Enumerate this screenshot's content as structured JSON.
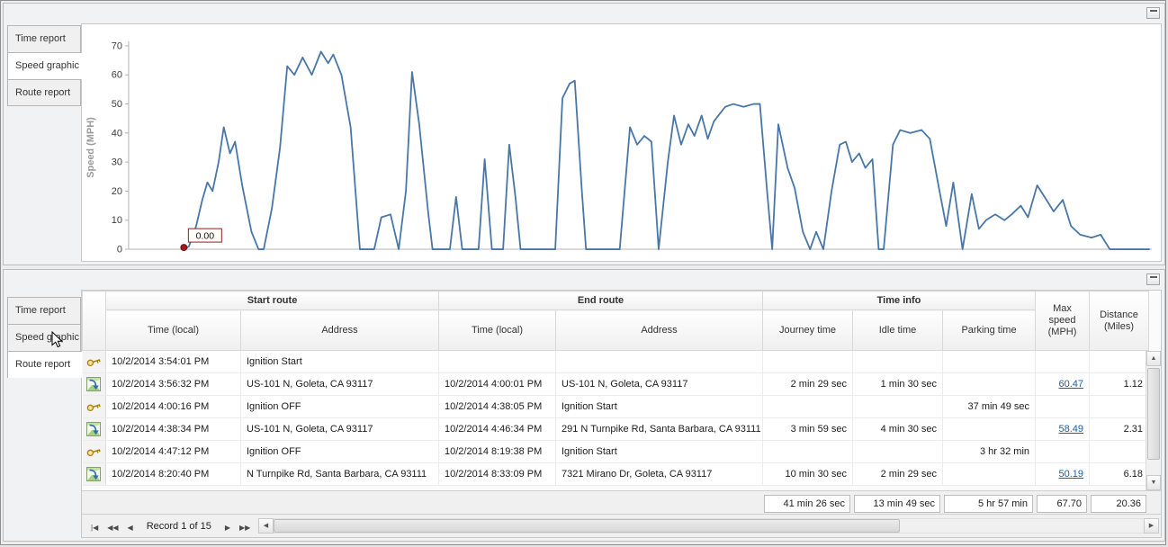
{
  "scrollbar": {
    "up": "▲",
    "down": "▼",
    "left": "◀",
    "right": "▶"
  },
  "top_panel": {
    "tabs": [
      {
        "label": "Time report",
        "active": false
      },
      {
        "label": "Speed graphic",
        "active": true
      },
      {
        "label": "Route report",
        "active": false
      }
    ]
  },
  "chart_data": {
    "type": "line",
    "title": "",
    "xlabel": "",
    "ylabel": "Speed (MPH)",
    "ylim": [
      0,
      70
    ],
    "yticks": [
      0,
      10,
      20,
      30,
      40,
      50,
      60,
      70
    ],
    "grid": false,
    "legend": false,
    "line_color": "#4876a8",
    "x_unit": "percent_of_plot_width",
    "marker": {
      "x": 5.4,
      "value": 0,
      "label": "0.00",
      "color": "#9b1c1c"
    },
    "points": [
      [
        5.4,
        0
      ],
      [
        5.9,
        1
      ],
      [
        6.6,
        8
      ],
      [
        7.2,
        17
      ],
      [
        7.7,
        23
      ],
      [
        8.2,
        20
      ],
      [
        8.8,
        30
      ],
      [
        9.3,
        42
      ],
      [
        9.9,
        33
      ],
      [
        10.4,
        37
      ],
      [
        11.1,
        22
      ],
      [
        12.0,
        6
      ],
      [
        12.7,
        0
      ],
      [
        13.2,
        0
      ],
      [
        14.0,
        14
      ],
      [
        14.8,
        35
      ],
      [
        15.5,
        63
      ],
      [
        16.2,
        60
      ],
      [
        17.0,
        66
      ],
      [
        17.9,
        60
      ],
      [
        18.8,
        68
      ],
      [
        19.5,
        64
      ],
      [
        20.0,
        67
      ],
      [
        20.8,
        60
      ],
      [
        21.7,
        42
      ],
      [
        22.6,
        0
      ],
      [
        24.0,
        0
      ],
      [
        24.7,
        11
      ],
      [
        25.6,
        12
      ],
      [
        26.4,
        0
      ],
      [
        27.1,
        20
      ],
      [
        27.7,
        61
      ],
      [
        28.4,
        43
      ],
      [
        29.3,
        12
      ],
      [
        29.7,
        0
      ],
      [
        31.4,
        0
      ],
      [
        32.0,
        18
      ],
      [
        32.6,
        0
      ],
      [
        34.2,
        0
      ],
      [
        34.8,
        31
      ],
      [
        35.5,
        0
      ],
      [
        36.6,
        0
      ],
      [
        37.2,
        36
      ],
      [
        37.8,
        18
      ],
      [
        38.3,
        0
      ],
      [
        41.7,
        0
      ],
      [
        42.4,
        52
      ],
      [
        43.1,
        57
      ],
      [
        43.6,
        58
      ],
      [
        44.3,
        20
      ],
      [
        44.7,
        0
      ],
      [
        48.0,
        0
      ],
      [
        49.0,
        42
      ],
      [
        49.7,
        36
      ],
      [
        50.4,
        39
      ],
      [
        51.1,
        37
      ],
      [
        51.8,
        0
      ],
      [
        52.7,
        30
      ],
      [
        53.3,
        46
      ],
      [
        54.0,
        36
      ],
      [
        54.7,
        43
      ],
      [
        55.3,
        39
      ],
      [
        56.0,
        46
      ],
      [
        56.6,
        38
      ],
      [
        57.2,
        44
      ],
      [
        58.3,
        49
      ],
      [
        59.1,
        50
      ],
      [
        60.1,
        49
      ],
      [
        61.1,
        50
      ],
      [
        61.7,
        50
      ],
      [
        62.4,
        20
      ],
      [
        62.9,
        0
      ],
      [
        63.5,
        43
      ],
      [
        64.4,
        28
      ],
      [
        65.1,
        21
      ],
      [
        65.9,
        6
      ],
      [
        66.6,
        0
      ],
      [
        67.2,
        6
      ],
      [
        67.9,
        0
      ],
      [
        68.7,
        20
      ],
      [
        69.5,
        36
      ],
      [
        70.1,
        37
      ],
      [
        70.7,
        30
      ],
      [
        71.4,
        33
      ],
      [
        72.0,
        28
      ],
      [
        72.7,
        31
      ],
      [
        73.3,
        0
      ],
      [
        73.8,
        0
      ],
      [
        74.7,
        36
      ],
      [
        75.4,
        41
      ],
      [
        76.4,
        40
      ],
      [
        77.5,
        41
      ],
      [
        78.3,
        38
      ],
      [
        79.2,
        21
      ],
      [
        79.9,
        8
      ],
      [
        80.6,
        23
      ],
      [
        81.5,
        0
      ],
      [
        82.4,
        19
      ],
      [
        83.1,
        7
      ],
      [
        83.8,
        10
      ],
      [
        84.7,
        12
      ],
      [
        85.6,
        10
      ],
      [
        86.3,
        12
      ],
      [
        87.2,
        15
      ],
      [
        87.9,
        11
      ],
      [
        88.8,
        22
      ],
      [
        89.7,
        17
      ],
      [
        90.4,
        13
      ],
      [
        91.3,
        17
      ],
      [
        92.1,
        8
      ],
      [
        93.0,
        5
      ],
      [
        94.1,
        4
      ],
      [
        95.0,
        5
      ],
      [
        95.9,
        0
      ],
      [
        97.4,
        0
      ],
      [
        98.7,
        0
      ],
      [
        99.8,
        0
      ]
    ]
  },
  "bottom_panel": {
    "tabs": [
      {
        "label": "Time report",
        "active": false
      },
      {
        "label": "Speed graphic",
        "active": false
      },
      {
        "label": "Route report",
        "active": true
      }
    ],
    "table": {
      "group_headers": [
        {
          "label": "Start route",
          "span": 2
        },
        {
          "label": "End route",
          "span": 2
        },
        {
          "label": "Time info",
          "span": 3
        }
      ],
      "columns": [
        "Time (local)",
        "Address",
        "Time (local)",
        "Address",
        "Journey time",
        "Idle time",
        "Parking time",
        "Max speed (MPH)",
        "Distance (Miles)"
      ],
      "rows": [
        {
          "icon": "key",
          "start_time": "10/2/2014 3:54:01 PM",
          "start_address": "Ignition Start",
          "end_time": "",
          "end_address": "",
          "journey": "",
          "idle": "",
          "parking": "",
          "max_speed": "",
          "max_speed_link": false,
          "distance": ""
        },
        {
          "icon": "route",
          "start_time": "10/2/2014 3:56:32 PM",
          "start_address": "US-101 N, Goleta, CA 93117",
          "end_time": "10/2/2014 4:00:01 PM",
          "end_address": "US-101 N, Goleta, CA 93117",
          "journey": "2 min 29 sec",
          "idle": "1 min 30 sec",
          "parking": "",
          "max_speed": "60.47",
          "max_speed_link": true,
          "distance": "1.12"
        },
        {
          "icon": "key",
          "start_time": "10/2/2014 4:00:16 PM",
          "start_address": "Ignition OFF",
          "end_time": "10/2/2014 4:38:05 PM",
          "end_address": "Ignition Start",
          "journey": "",
          "idle": "",
          "parking": "37 min 49 sec",
          "max_speed": "",
          "max_speed_link": false,
          "distance": ""
        },
        {
          "icon": "route",
          "start_time": "10/2/2014 4:38:34 PM",
          "start_address": "US-101 N, Goleta, CA 93117",
          "end_time": "10/2/2014 4:46:34 PM",
          "end_address": "291 N Turnpike Rd, Santa Barbara, CA 93111",
          "journey": "3 min 59 sec",
          "idle": "4 min 30 sec",
          "parking": "",
          "max_speed": "58.49",
          "max_speed_link": true,
          "distance": "2.31"
        },
        {
          "icon": "key",
          "start_time": "10/2/2014 4:47:12 PM",
          "start_address": "Ignition OFF",
          "end_time": "10/2/2014 8:19:38 PM",
          "end_address": "Ignition Start",
          "journey": "",
          "idle": "",
          "parking": "3 hr 32 min",
          "max_speed": "",
          "max_speed_link": false,
          "distance": ""
        },
        {
          "icon": "route",
          "start_time": "10/2/2014 8:20:40 PM",
          "start_address": "N Turnpike Rd, Santa Barbara, CA 93111",
          "end_time": "10/2/2014 8:33:09 PM",
          "end_address": "7321 Mirano Dr, Goleta, CA 93117",
          "journey": "10 min 30 sec",
          "idle": "2 min 29 sec",
          "parking": "",
          "max_speed": "50.19",
          "max_speed_link": true,
          "distance": "6.18"
        }
      ],
      "summary": {
        "journey": "41 min 26 sec",
        "idle": "13 min 49 sec",
        "parking": "5 hr 57 min",
        "max_speed": "67.70",
        "distance": "20.36"
      },
      "pager": {
        "label": "Record 1 of 15",
        "buttons_left": [
          {
            "name": "first",
            "glyph": "|◀"
          },
          {
            "name": "prev-page",
            "glyph": "◀◀"
          },
          {
            "name": "prev",
            "glyph": "◀"
          }
        ],
        "buttons_right": [
          {
            "name": "next",
            "glyph": "▶"
          },
          {
            "name": "next-page",
            "glyph": "▶▶"
          },
          {
            "name": "last",
            "glyph": "▶|"
          }
        ]
      }
    }
  }
}
